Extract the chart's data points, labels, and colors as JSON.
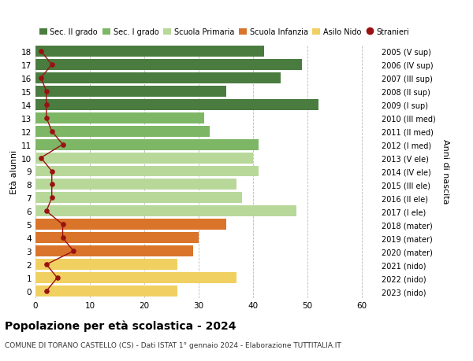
{
  "ages": [
    18,
    17,
    16,
    15,
    14,
    13,
    12,
    11,
    10,
    9,
    8,
    7,
    6,
    5,
    4,
    3,
    2,
    1,
    0
  ],
  "bar_values": [
    42,
    49,
    45,
    35,
    52,
    31,
    32,
    41,
    40,
    41,
    37,
    38,
    48,
    35,
    30,
    29,
    26,
    37,
    26
  ],
  "stranieri": [
    1,
    3,
    1,
    2,
    2,
    2,
    3,
    5,
    1,
    3,
    3,
    3,
    2,
    5,
    5,
    7,
    2,
    4,
    2
  ],
  "right_labels": [
    "2005 (V sup)",
    "2006 (IV sup)",
    "2007 (III sup)",
    "2008 (II sup)",
    "2009 (I sup)",
    "2010 (III med)",
    "2011 (II med)",
    "2012 (I med)",
    "2013 (V ele)",
    "2014 (IV ele)",
    "2015 (III ele)",
    "2016 (II ele)",
    "2017 (I ele)",
    "2018 (mater)",
    "2019 (mater)",
    "2020 (mater)",
    "2021 (nido)",
    "2022 (nido)",
    "2023 (nido)"
  ],
  "bar_colors": [
    "#4a7c3f",
    "#4a7c3f",
    "#4a7c3f",
    "#4a7c3f",
    "#4a7c3f",
    "#7db665",
    "#7db665",
    "#7db665",
    "#b8d89a",
    "#b8d89a",
    "#b8d89a",
    "#b8d89a",
    "#b8d89a",
    "#d9742a",
    "#d9742a",
    "#d9742a",
    "#f0d060",
    "#f0d060",
    "#f0d060"
  ],
  "legend_labels": [
    "Sec. II grado",
    "Sec. I grado",
    "Scuola Primaria",
    "Scuola Infanzia",
    "Asilo Nido",
    "Stranieri"
  ],
  "legend_colors": [
    "#4a7c3f",
    "#7db665",
    "#b8d89a",
    "#d9742a",
    "#f0d060",
    "#991111"
  ],
  "stranieri_color": "#991111",
  "title": "Popolazione per età scolastica - 2024",
  "subtitle": "COMUNE DI TORANO CASTELLO (CS) - Dati ISTAT 1° gennaio 2024 - Elaborazione TUTTITALIA.IT",
  "ylabel": "Età alunni",
  "right_ylabel": "Anni di nascita",
  "xlabel_range": [
    0,
    10,
    20,
    30,
    40,
    50,
    60
  ],
  "xlim": [
    0,
    63
  ],
  "background_color": "#ffffff",
  "grid_color": "#bbbbbb"
}
